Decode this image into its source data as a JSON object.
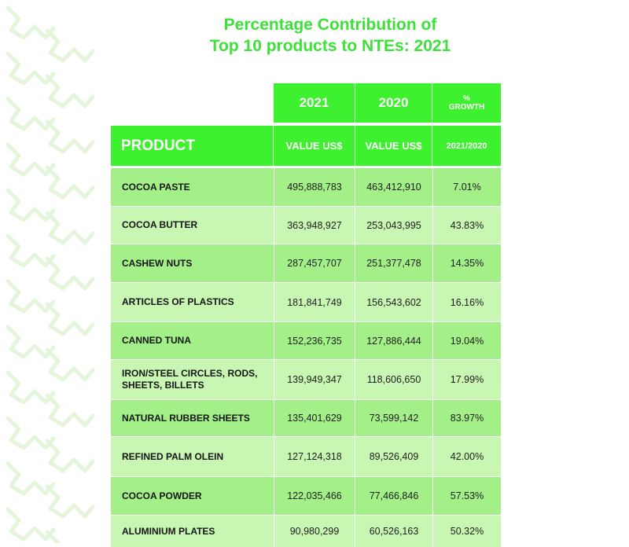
{
  "chart_data": {
    "type": "table",
    "title_lines": [
      "Percentage Contribution of",
      "Top 10 products to NTEs: 2021"
    ],
    "header": {
      "year_2021": "2021",
      "year_2020": "2020",
      "growth_pct": "%",
      "growth_label": "GROWTH",
      "product": "PRODUCT",
      "value_2021": "VALUE US$",
      "value_2020": "VALUE US$",
      "growth_period": "2021/2020"
    },
    "rows": [
      {
        "product": "COCOA PASTE",
        "v2021": "495,888,783",
        "v2020": "463,412,910",
        "growth": "7.01%"
      },
      {
        "product": "COCOA BUTTER",
        "v2021": "363,948,927",
        "v2020": "253,043,995",
        "growth": "43.83%"
      },
      {
        "product": "CASHEW NUTS",
        "v2021": "287,457,707",
        "v2020": "251,377,478",
        "growth": "14.35%"
      },
      {
        "product": "ARTICLES OF PLASTICS",
        "v2021": "181,841,749",
        "v2020": "156,543,602",
        "growth": "16.16%"
      },
      {
        "product": "CANNED TUNA",
        "v2021": "152,236,735",
        "v2020": "127,886,444",
        "growth": "19.04%"
      },
      {
        "product": "IRON/STEEL CIRCLES, RODS, SHEETS, BILLETS",
        "v2021": "139,949,347",
        "v2020": "118,606,650",
        "growth": "17.99%"
      },
      {
        "product": "NATURAL RUBBER SHEETS",
        "v2021": "135,401,629",
        "v2020": "73,599,142",
        "growth": "83.97%"
      },
      {
        "product": "REFINED PALM OLEIN",
        "v2021": "127,124,318",
        "v2020": "89,526,409",
        "growth": "42.00%"
      },
      {
        "product": "COCOA POWDER",
        "v2021": "122,035,466",
        "v2020": "77,466,846",
        "growth": "57.53%"
      },
      {
        "product": "ALUMINIUM PLATES",
        "v2021": "90,980,299",
        "v2020": "60,526,163",
        "growth": "50.32%"
      }
    ]
  },
  "colors": {
    "title": "#3ee03a",
    "header_bg": "#3ef12e",
    "row_dark": "#a3ef88",
    "row_light": "#c8f6b3",
    "pattern": "#e4f5dc"
  }
}
